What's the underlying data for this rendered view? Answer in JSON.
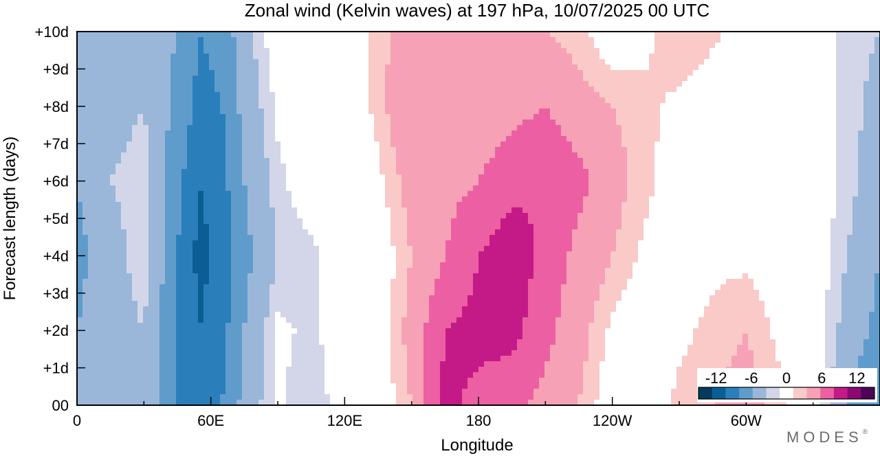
{
  "chart_data": {
    "type": "heatmap",
    "title": "Zonal wind (Kelvin waves) at 197 hPa,  10/07/2025  00 UTC",
    "xlabel": "Longitude",
    "ylabel": "Forecast length (days)",
    "x_ticks": [
      {
        "lon": 0,
        "label": "0"
      },
      {
        "lon": 60,
        "label": "60E"
      },
      {
        "lon": 120,
        "label": "120E"
      },
      {
        "lon": 180,
        "label": "180"
      },
      {
        "lon": 240,
        "label": "120W"
      },
      {
        "lon": 300,
        "label": "60W"
      }
    ],
    "x_minor_ticks": [
      30,
      90,
      150,
      210,
      270,
      330
    ],
    "xlim": [
      0,
      360
    ],
    "y_ticks": [
      {
        "day": 0,
        "label": "00"
      },
      {
        "day": 1,
        "label": "+1d"
      },
      {
        "day": 2,
        "label": "+2d"
      },
      {
        "day": 3,
        "label": "+3d"
      },
      {
        "day": 4,
        "label": "+4d"
      },
      {
        "day": 5,
        "label": "+5d"
      },
      {
        "day": 6,
        "label": "+6d"
      },
      {
        "day": 7,
        "label": "+7d"
      },
      {
        "day": 8,
        "label": "+8d"
      },
      {
        "day": 9,
        "label": "+9d"
      },
      {
        "day": 10,
        "label": "+10d"
      }
    ],
    "ylim": [
      0,
      10
    ],
    "lon_grid": [
      0,
      15,
      30,
      45,
      55,
      65,
      75,
      90,
      105,
      120,
      135,
      150,
      165,
      180,
      195,
      210,
      225,
      240,
      255,
      270,
      285,
      300,
      315,
      330,
      345,
      360
    ],
    "day_grid": [
      0,
      2,
      4,
      6,
      8,
      10
    ],
    "values": [
      [
        -6,
        -6,
        -3,
        -9,
        -12,
        -9,
        -5,
        -1,
        -3,
        0,
        0,
        3,
        10,
        8,
        7,
        5,
        3,
        0,
        0,
        2,
        3,
        4,
        2,
        0,
        -6,
        -9
      ],
      [
        -6,
        -4,
        -3,
        -9,
        -12,
        -10,
        -6,
        -1,
        -2,
        0,
        0,
        4,
        9,
        10,
        10,
        7,
        4,
        1,
        0,
        1,
        2,
        3,
        1,
        0,
        -4,
        -7
      ],
      [
        -7,
        -4,
        -2,
        -9,
        -13,
        -11,
        -7,
        -3,
        -2,
        0,
        0,
        3,
        6,
        9,
        11,
        8,
        5,
        3,
        1,
        0,
        1,
        1,
        0,
        0,
        -3,
        -6
      ],
      [
        -6,
        -3,
        -2,
        -8,
        -12,
        -10,
        -6,
        -2,
        0,
        0,
        1,
        4,
        5,
        6,
        8,
        9,
        7,
        4,
        2,
        0,
        0,
        0,
        0,
        0,
        -2,
        -5
      ],
      [
        -5,
        -4,
        -3,
        -7,
        -10,
        -9,
        -5,
        -1,
        0,
        0,
        2,
        6,
        5,
        4,
        5,
        6,
        4,
        3,
        2,
        1,
        0,
        0,
        0,
        0,
        -2,
        -4
      ],
      [
        -4,
        -5,
        -4,
        -6,
        -9,
        -8,
        -4,
        0,
        0,
        0,
        2,
        5,
        5,
        4,
        5,
        3,
        2,
        0,
        1,
        3,
        2,
        0,
        0,
        0,
        -2,
        -3
      ]
    ],
    "colorbar": {
      "levels": [
        -15,
        -12,
        -9,
        -6,
        -3,
        -1.5,
        1.5,
        3,
        6,
        9,
        12,
        15
      ],
      "labels": [
        {
          "value": -12,
          "label": "-12"
        },
        {
          "value": -6,
          "label": "-6"
        },
        {
          "value": 0,
          "label": "0"
        },
        {
          "value": 6,
          "label": "6"
        },
        {
          "value": 12,
          "label": "12"
        }
      ]
    },
    "colors": [
      "#063a5c",
      "#0a5e95",
      "#2a7fba",
      "#5f9ccb",
      "#9ab7d9",
      "#d2d6e8",
      "#ffffff",
      "#f9cac8",
      "#f6a1b6",
      "#ec5fa2",
      "#c41a88",
      "#8c0873",
      "#4d0558"
    ]
  },
  "brand": "MODES"
}
